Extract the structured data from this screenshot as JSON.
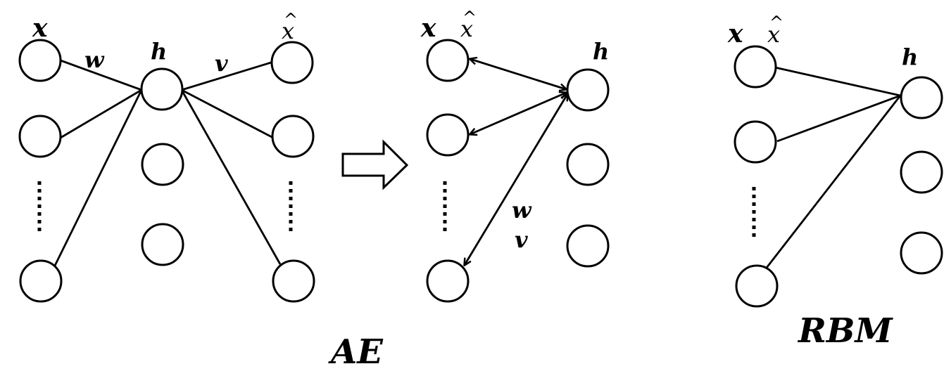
{
  "labels": {
    "x": "x",
    "x_hat_base": "x",
    "x_hat_mark": "^",
    "h": "h",
    "w": "w",
    "v": "v",
    "ae_caption": "AE",
    "rbm_caption": "RBM"
  }
}
